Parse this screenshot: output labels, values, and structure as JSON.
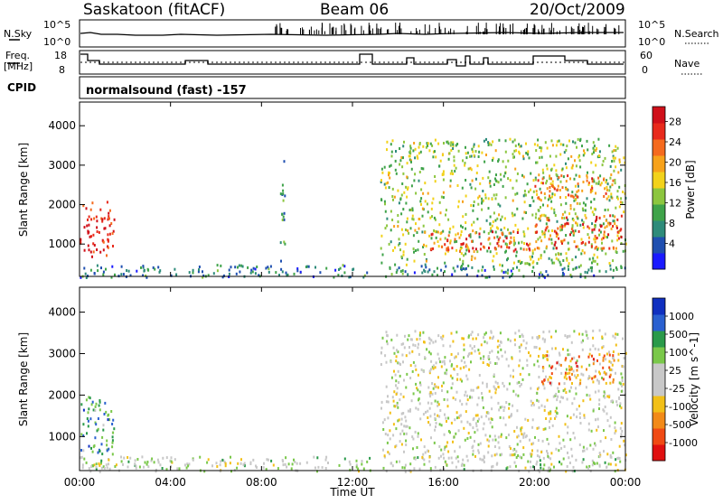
{
  "header": {
    "station": "Saskatoon (fitACF)",
    "beam": "Beam 06",
    "date": "20/Oct/2009"
  },
  "noise_panel": {
    "left_label": "N.Sky",
    "right_label": "N.Search",
    "tick_top_left": "10^5",
    "tick_bottom_left": "10^0",
    "tick_top_right": "10^5",
    "tick_bottom_right": "10^0"
  },
  "freq_panel": {
    "left_label_line1": "Freq.",
    "left_label_line2": "[MHz]",
    "right_label": "Nave",
    "tick_top_left": "18",
    "tick_bottom_left": "8",
    "tick_top_right": "60",
    "tick_bottom_right": "0"
  },
  "cpid": {
    "label": "CPID",
    "mode_text": "normalsound (fast) -157"
  },
  "chart_data": [
    {
      "type": "heatmap",
      "name": "power",
      "ylabel": "Slant Range [km]",
      "ylim": [
        180,
        4600
      ],
      "yticks": [
        "1000",
        "2000",
        "3000",
        "4000"
      ],
      "xlim": [
        0,
        24
      ],
      "colorbar_label": "Power [dB]",
      "colorbar_ticks": [
        "4",
        "8",
        "12",
        "16",
        "20",
        "24",
        "28"
      ],
      "colorbar_colors": [
        "#1a1aff",
        "#1f4fb0",
        "#2e8b7a",
        "#3fa34a",
        "#8cc63f",
        "#f2d21b",
        "#f7a21b",
        "#f56a1e",
        "#e82a1c",
        "#d0101a"
      ],
      "regions": [
        {
          "x": [
            0.0,
            1.5
          ],
          "y": [
            700,
            2100
          ],
          "level": 0.88
        },
        {
          "x": [
            0.0,
            24.0
          ],
          "y": [
            180,
            500
          ],
          "level": 0.25
        },
        {
          "x": [
            8.8,
            9.0
          ],
          "y": [
            500,
            3300
          ],
          "level": 0.3
        },
        {
          "x": [
            13.2,
            24.0
          ],
          "y": [
            500,
            3700
          ],
          "level": 0.45
        },
        {
          "x": [
            15.2,
            20.0
          ],
          "y": [
            850,
            1350
          ],
          "level": 0.82
        },
        {
          "x": [
            20.0,
            23.8
          ],
          "y": [
            900,
            1800
          ],
          "level": 0.78
        },
        {
          "x": [
            20.0,
            23.5
          ],
          "y": [
            2200,
            2800
          ],
          "level": 0.75
        }
      ]
    },
    {
      "type": "heatmap",
      "name": "velocity",
      "ylabel": "Slant Range [km]",
      "ylim": [
        180,
        4600
      ],
      "yticks": [
        "1000",
        "2000",
        "3000",
        "4000"
      ],
      "xlabel": "Time UT",
      "xticks": [
        "00:00",
        "04:00",
        "08:00",
        "12:00",
        "16:00",
        "20:00",
        "00:00"
      ],
      "xlim": [
        0,
        24
      ],
      "colorbar_label": "Velocity [m s^-1]",
      "colorbar_ticks": [
        "1000",
        "500",
        "100",
        "25",
        "-25",
        "-100",
        "-500",
        "-1000"
      ],
      "colorbar_colors": [
        "#1030c0",
        "#2a60d0",
        "#2a9a4a",
        "#7ac84a",
        "#c8c8c8",
        "#c8c8c8",
        "#f2c018",
        "#f28a18",
        "#f04a14",
        "#e01010"
      ],
      "regions": [
        {
          "x": [
            0.0,
            1.5
          ],
          "y": [
            600,
            2000
          ],
          "level": 0.25
        },
        {
          "x": [
            0.0,
            24.0
          ],
          "y": [
            180,
            550
          ],
          "level": 0.45
        },
        {
          "x": [
            13.2,
            24.0
          ],
          "y": [
            500,
            3600
          ],
          "level": 0.5
        },
        {
          "x": [
            20.3,
            23.5
          ],
          "y": [
            2300,
            3000
          ],
          "level": 0.78
        }
      ]
    }
  ]
}
